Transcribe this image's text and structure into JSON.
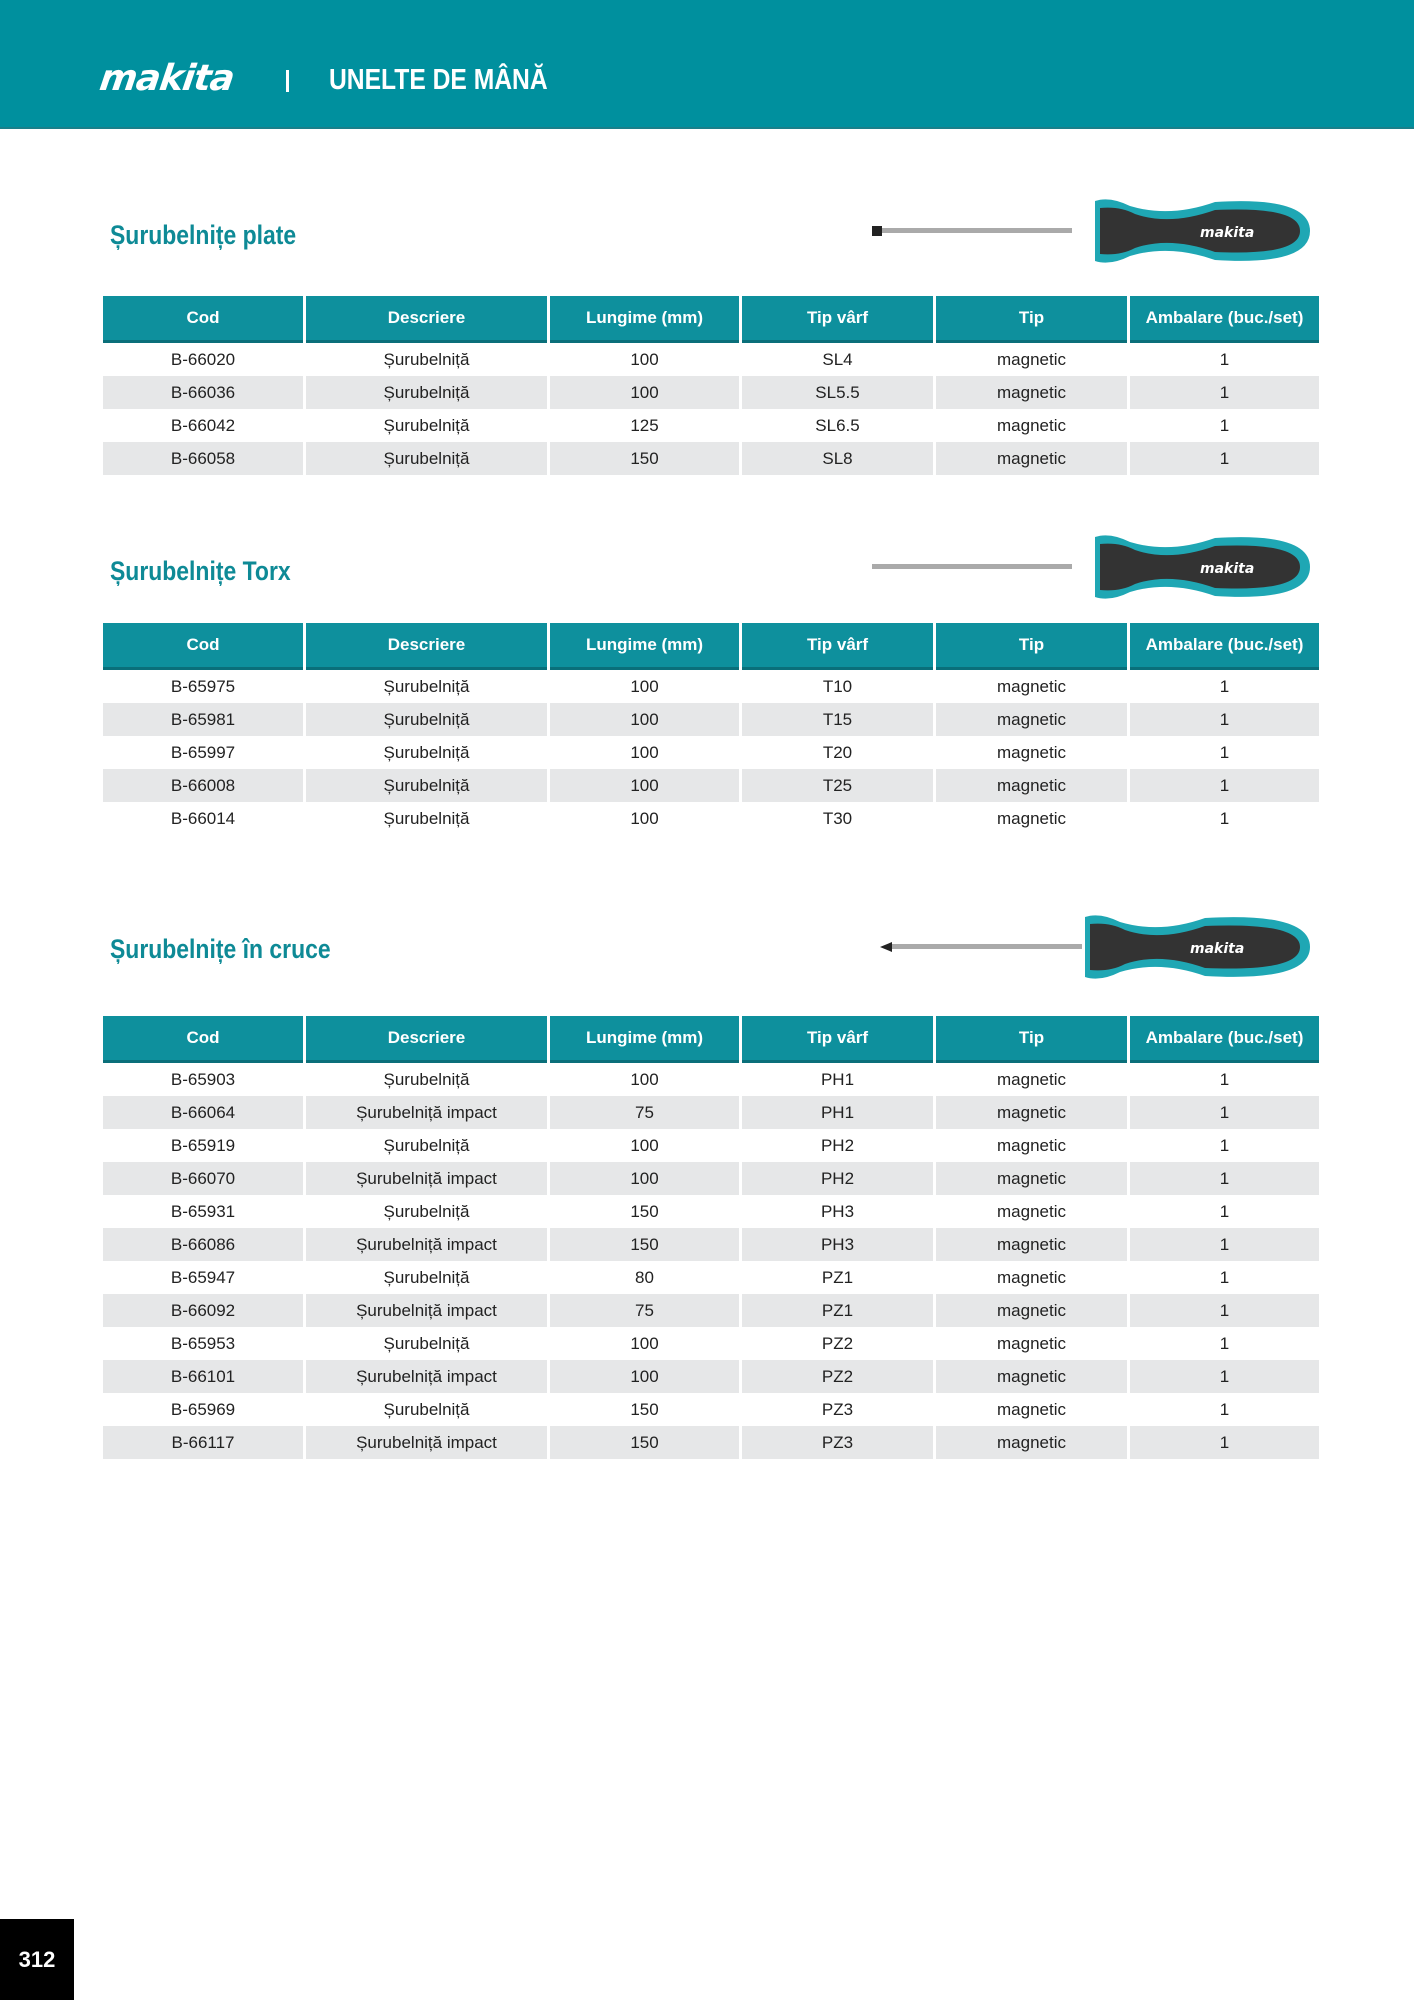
{
  "header": {
    "brand": "makita",
    "category": "UNELTE DE MÂNĂ"
  },
  "columns": [
    "Cod",
    "Descriere",
    "Lungime (mm)",
    "Tip vârf",
    "Tip",
    "Ambalare (buc./set)"
  ],
  "sections": [
    {
      "title": "Șurubelnițe plate",
      "rows": [
        [
          "B-66020",
          "Șurubelniță",
          "100",
          "SL4",
          "magnetic",
          "1"
        ],
        [
          "B-66036",
          "Șurubelniță",
          "100",
          "SL5.5",
          "magnetic",
          "1"
        ],
        [
          "B-66042",
          "Șurubelniță",
          "125",
          "SL6.5",
          "magnetic",
          "1"
        ],
        [
          "B-66058",
          "Șurubelniță",
          "150",
          "SL8",
          "magnetic",
          "1"
        ]
      ]
    },
    {
      "title": "Șurubelnițe Torx",
      "rows": [
        [
          "B-65975",
          "Șurubelniță",
          "100",
          "T10",
          "magnetic",
          "1"
        ],
        [
          "B-65981",
          "Șurubelniță",
          "100",
          "T15",
          "magnetic",
          "1"
        ],
        [
          "B-65997",
          "Șurubelniță",
          "100",
          "T20",
          "magnetic",
          "1"
        ],
        [
          "B-66008",
          "Șurubelniță",
          "100",
          "T25",
          "magnetic",
          "1"
        ],
        [
          "B-66014",
          "Șurubelniță",
          "100",
          "T30",
          "magnetic",
          "1"
        ]
      ]
    },
    {
      "title": "Șurubelnițe în cruce",
      "rows": [
        [
          "B-65903",
          "Șurubelniță",
          "100",
          "PH1",
          "magnetic",
          "1"
        ],
        [
          "B-66064",
          "Șurubelniță impact",
          "75",
          "PH1",
          "magnetic",
          "1"
        ],
        [
          "B-65919",
          "Șurubelniță",
          "100",
          "PH2",
          "magnetic",
          "1"
        ],
        [
          "B-66070",
          "Șurubelniță impact",
          "100",
          "PH2",
          "magnetic",
          "1"
        ],
        [
          "B-65931",
          "Șurubelniță",
          "150",
          "PH3",
          "magnetic",
          "1"
        ],
        [
          "B-66086",
          "Șurubelniță impact",
          "150",
          "PH3",
          "magnetic",
          "1"
        ],
        [
          "B-65947",
          "Șurubelniță",
          "80",
          "PZ1",
          "magnetic",
          "1"
        ],
        [
          "B-66092",
          "Șurubelniță impact",
          "75",
          "PZ1",
          "magnetic",
          "1"
        ],
        [
          "B-65953",
          "Șurubelniță",
          "100",
          "PZ2",
          "magnetic",
          "1"
        ],
        [
          "B-66101",
          "Șurubelniță impact",
          "100",
          "PZ2",
          "magnetic",
          "1"
        ],
        [
          "B-65969",
          "Șurubelniță",
          "150",
          "PZ3",
          "magnetic",
          "1"
        ],
        [
          "B-66117",
          "Șurubelniță impact",
          "150",
          "PZ3",
          "magnetic",
          "1"
        ]
      ]
    }
  ],
  "page_number": "312",
  "colors": {
    "brand": "#00909e",
    "title": "#0e8a96",
    "row_alt": "#e6e7e8"
  }
}
